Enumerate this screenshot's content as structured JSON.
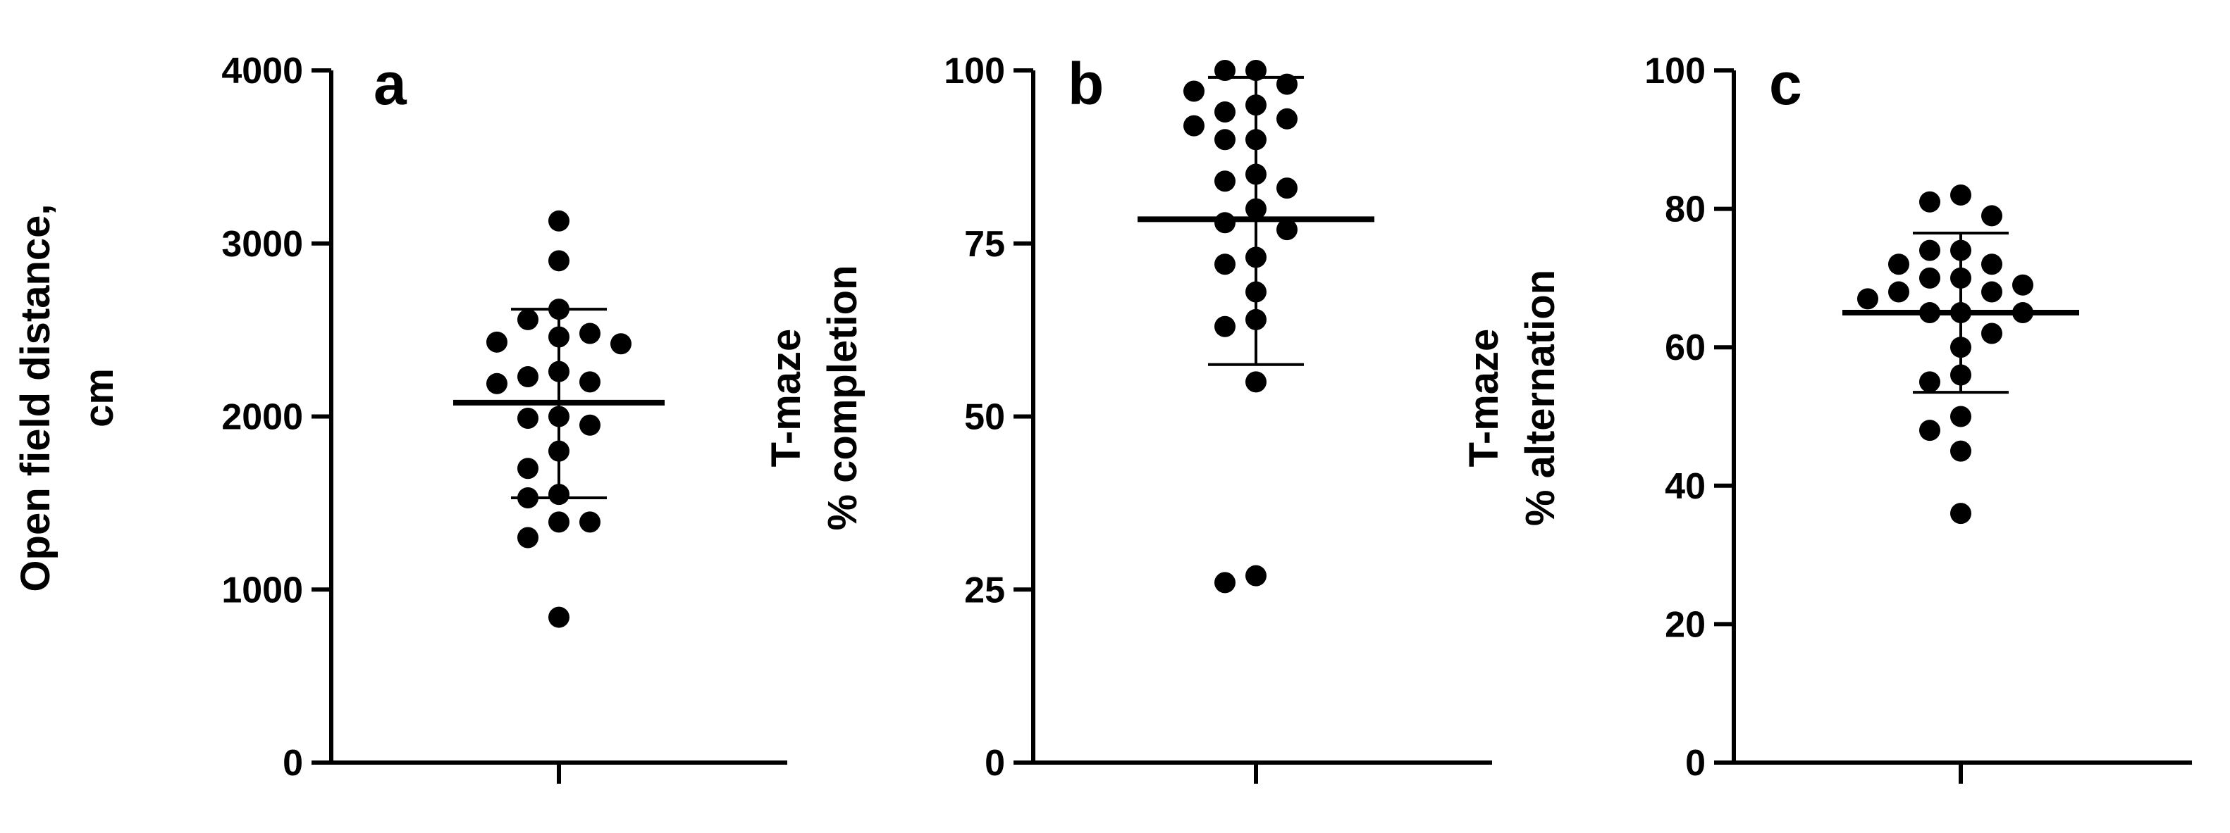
{
  "chart_data": [
    {
      "type": "scatter",
      "panel_label": "a",
      "ylabel_lines": [
        "Open field distance,",
        "cm"
      ],
      "ylim": [
        0,
        4000
      ],
      "yticks": [
        0,
        1000,
        2000,
        3000,
        4000
      ],
      "ytick_labels": [
        "0",
        "1000",
        "2000",
        "3000",
        "4000"
      ],
      "points": [
        3130,
        2900,
        2620,
        2560,
        2480,
        2460,
        2430,
        2420,
        2260,
        2230,
        2200,
        2190,
        2000,
        1990,
        1950,
        1800,
        1700,
        1550,
        1530,
        1390,
        1390,
        1300,
        840
      ],
      "mean": 2080,
      "sd_upper": 2620,
      "sd_lower": 1530,
      "color": "#000000"
    },
    {
      "type": "scatter",
      "panel_label": "b",
      "ylabel_lines": [
        "T-maze",
        "% completion"
      ],
      "ylim": [
        0,
        100
      ],
      "yticks": [
        0,
        25,
        50,
        75,
        100
      ],
      "ytick_labels": [
        "0",
        "25",
        "50",
        "75",
        "100"
      ],
      "points": [
        100,
        100,
        98,
        97,
        95,
        94,
        93,
        92,
        90,
        90,
        85,
        84,
        83,
        80,
        78,
        77,
        73,
        72,
        68,
        64,
        63,
        55,
        27,
        26
      ],
      "mean": 78.5,
      "sd_upper": 99,
      "sd_lower": 57.5,
      "color": "#000000"
    },
    {
      "type": "scatter",
      "panel_label": "c",
      "ylabel_lines": [
        "T-maze",
        "% alternation"
      ],
      "ylim": [
        0,
        100
      ],
      "yticks": [
        0,
        20,
        40,
        60,
        80,
        100
      ],
      "ytick_labels": [
        "0",
        "20",
        "40",
        "60",
        "80",
        "100"
      ],
      "points": [
        82,
        81,
        79,
        74,
        74,
        72,
        72,
        70,
        70,
        69,
        68,
        68,
        67,
        65,
        65,
        65,
        62,
        60,
        56,
        55,
        50,
        48,
        45,
        36
      ],
      "mean": 65,
      "sd_upper": 76.5,
      "sd_lower": 53.5,
      "color": "#000000"
    }
  ]
}
